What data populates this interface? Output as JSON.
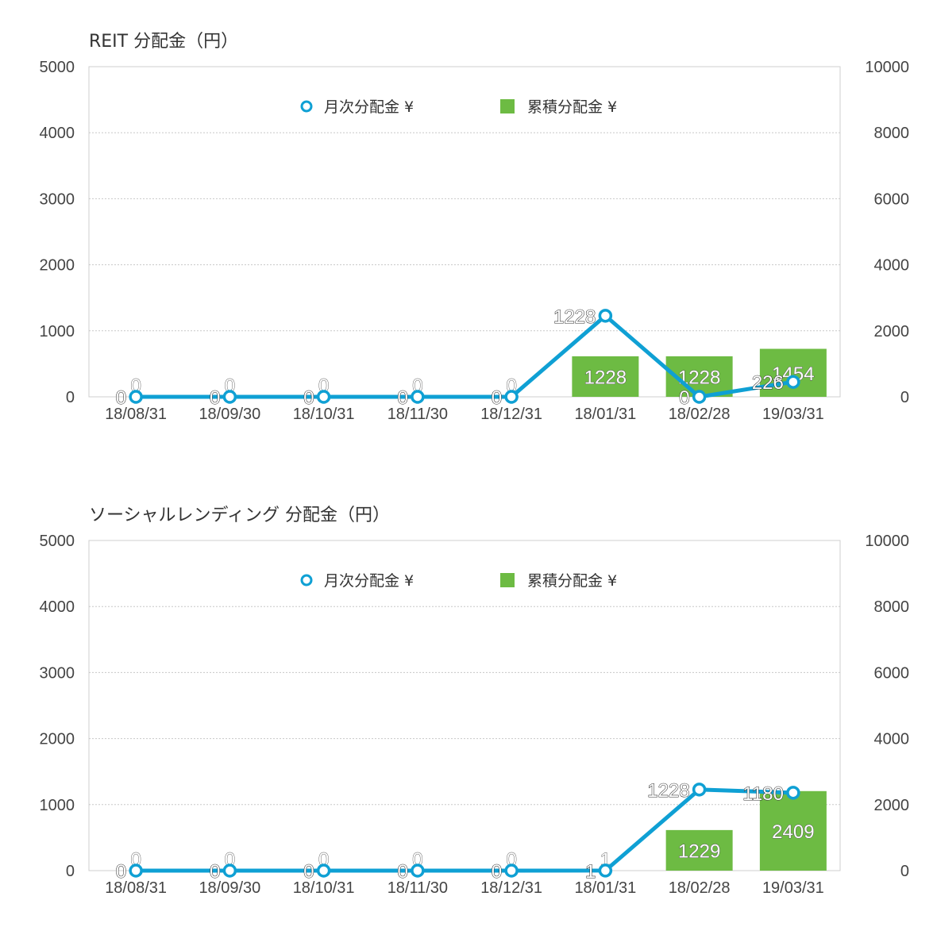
{
  "chart_data": [
    {
      "type": "bar+line",
      "title": "REIT 分配金（円）",
      "categories": [
        "18/08/31",
        "18/09/30",
        "18/10/31",
        "18/11/30",
        "18/12/31",
        "18/01/31",
        "18/02/28",
        "19/03/31"
      ],
      "series": [
        {
          "name": "月次分配金 ¥",
          "type": "line",
          "axis": "left",
          "color": "#0fa0d4",
          "values": [
            0,
            0,
            0,
            0,
            0,
            1228,
            0,
            226
          ]
        },
        {
          "name": "累積分配金 ¥",
          "type": "bar",
          "axis": "right",
          "color": "#6dbb43",
          "values": [
            0,
            0,
            0,
            0,
            0,
            1228,
            1228,
            1454
          ]
        }
      ],
      "ylim_left": [
        0,
        5000
      ],
      "yticks_left": [
        "0",
        "1000",
        "2000",
        "3000",
        "4000",
        "5000"
      ],
      "ylim_right": [
        0,
        10000
      ],
      "yticks_right": [
        "0",
        "2000",
        "4000",
        "6000",
        "8000",
        "10000"
      ],
      "grid": true,
      "legend": "top"
    },
    {
      "type": "bar+line",
      "title": "ソーシャルレンディング 分配金（円）",
      "categories": [
        "18/08/31",
        "18/09/30",
        "18/10/31",
        "18/11/30",
        "18/12/31",
        "18/01/31",
        "18/02/28",
        "19/03/31"
      ],
      "series": [
        {
          "name": "月次分配金 ¥",
          "type": "line",
          "axis": "left",
          "color": "#0fa0d4",
          "values": [
            0,
            0,
            0,
            0,
            0,
            1,
            1228,
            1180
          ]
        },
        {
          "name": "累積分配金 ¥",
          "type": "bar",
          "axis": "right",
          "color": "#6dbb43",
          "values": [
            0,
            0,
            0,
            0,
            0,
            1,
            1229,
            2409
          ]
        }
      ],
      "ylim_left": [
        0,
        5000
      ],
      "yticks_left": [
        "0",
        "1000",
        "2000",
        "3000",
        "4000",
        "5000"
      ],
      "ylim_right": [
        0,
        10000
      ],
      "yticks_right": [
        "0",
        "2000",
        "4000",
        "6000",
        "8000",
        "10000"
      ],
      "grid": true,
      "legend": "top"
    }
  ]
}
